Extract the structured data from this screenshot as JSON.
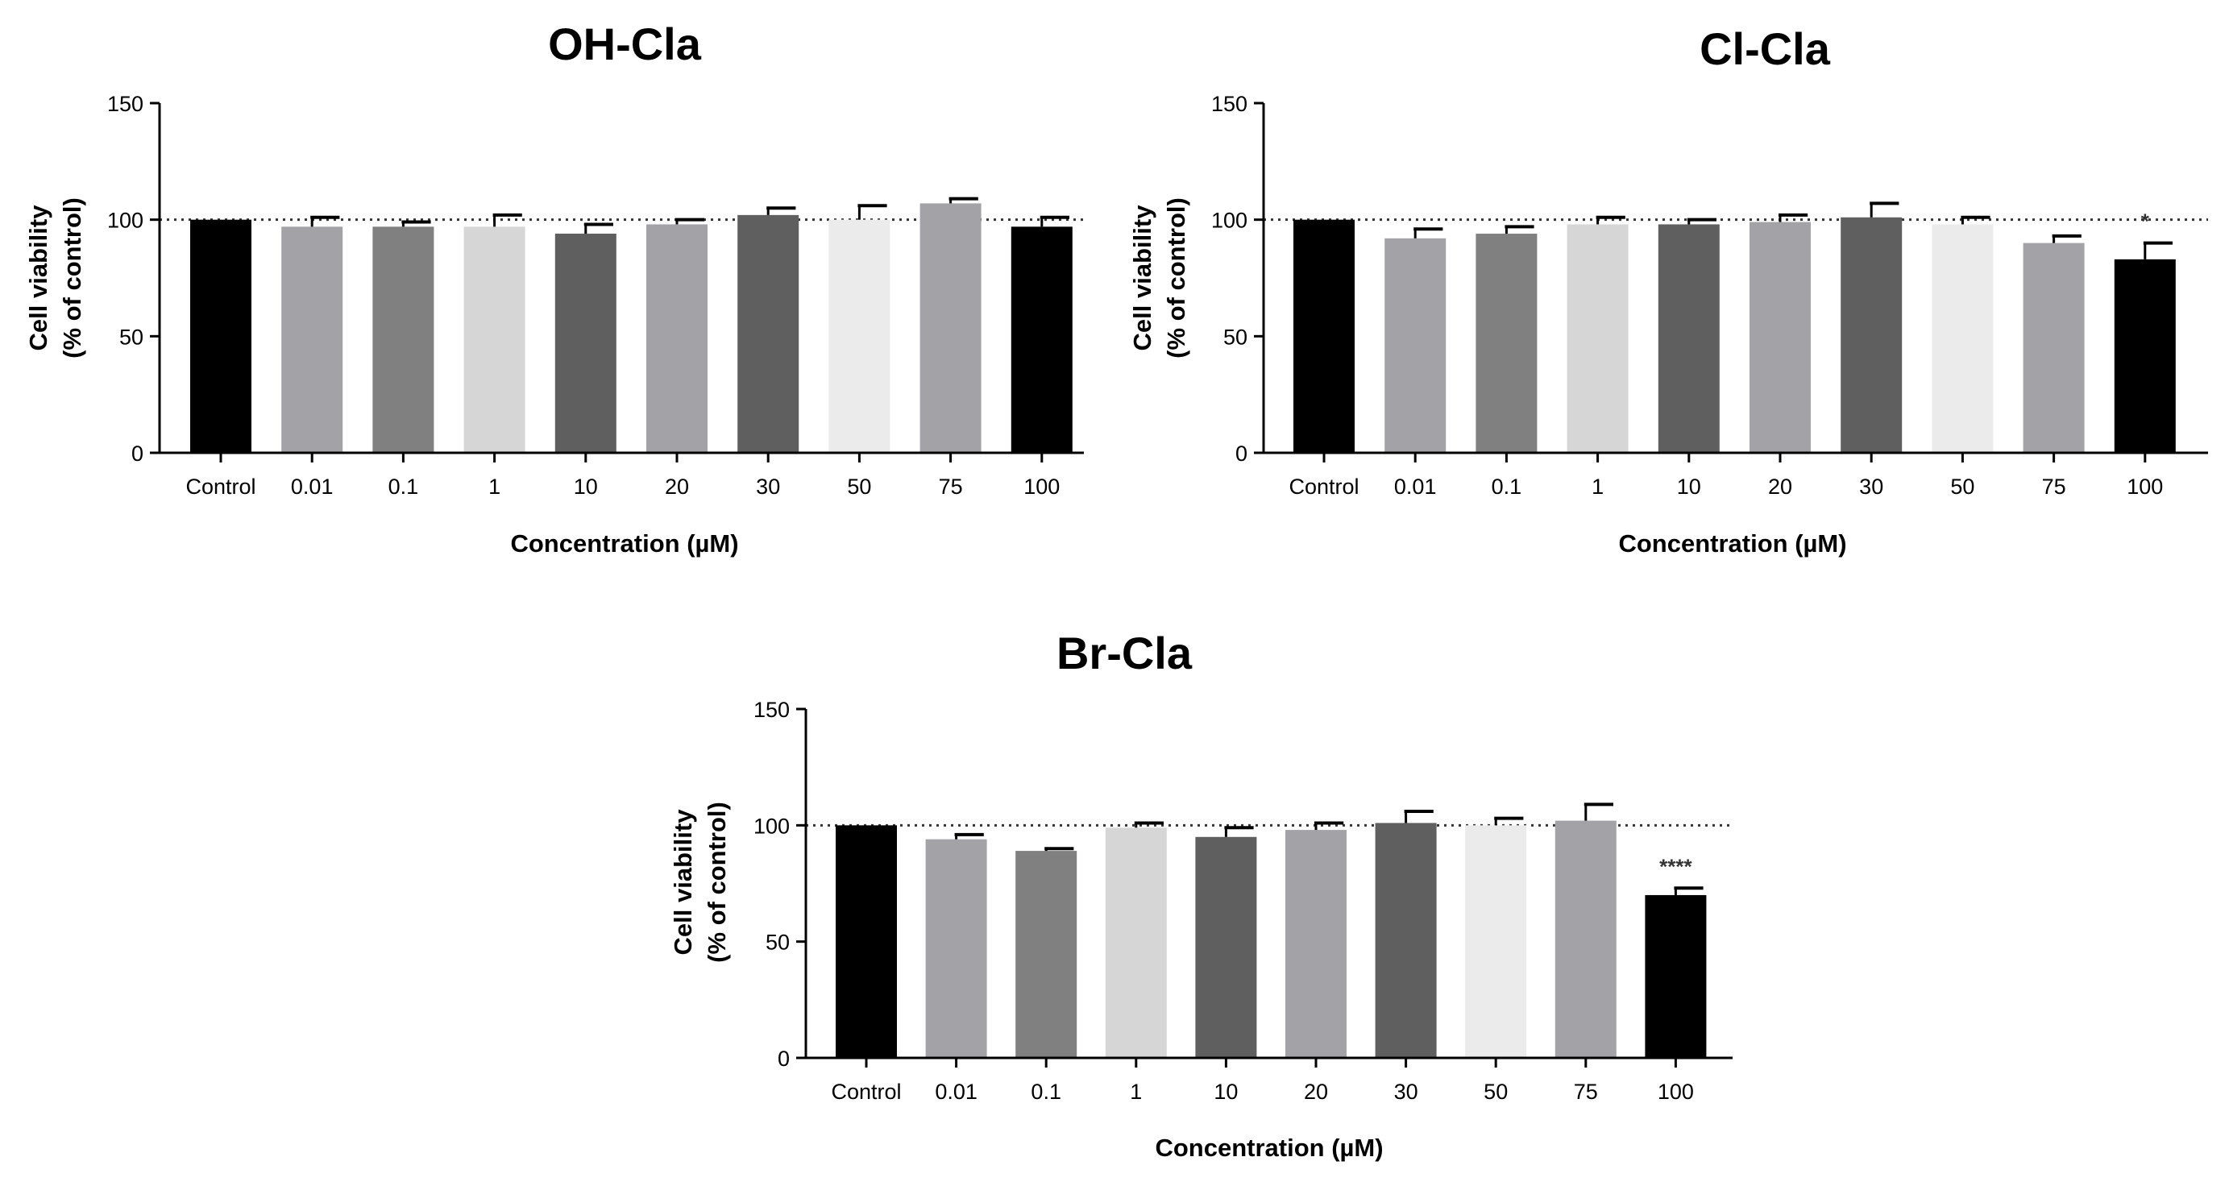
{
  "chart_data": [
    {
      "type": "bar",
      "title": "OH-Cla",
      "xlabel": "Concentration (µM)",
      "ylabel": [
        "Cell viability",
        "(% of control)"
      ],
      "categories": [
        "Control",
        "0.01",
        "0.1",
        "1",
        "10",
        "20",
        "30",
        "50",
        "75",
        "100"
      ],
      "values": [
        100,
        97,
        97,
        97,
        94,
        98,
        102,
        100,
        107,
        97
      ],
      "errors": [
        0,
        4,
        2,
        5,
        4,
        2,
        3,
        6,
        2,
        4
      ],
      "annotations": [
        "",
        "",
        "",
        "",
        "",
        "",
        "",
        "",
        "",
        ""
      ],
      "ylim": [
        0,
        150
      ],
      "yticks": [
        0,
        50,
        100,
        150
      ],
      "reference_line": 100
    },
    {
      "type": "bar",
      "title": "Cl-Cla",
      "xlabel": "Concentration (µM)",
      "ylabel": [
        "Cell viability",
        "(% of control)"
      ],
      "categories": [
        "Control",
        "0.01",
        "0.1",
        "1",
        "10",
        "20",
        "30",
        "50",
        "75",
        "100"
      ],
      "values": [
        100,
        92,
        94,
        98,
        98,
        99,
        101,
        98,
        90,
        83
      ],
      "errors": [
        0,
        4,
        3,
        3,
        2,
        3,
        6,
        3,
        3,
        7
      ],
      "annotations": [
        "",
        "",
        "",
        "",
        "",
        "",
        "",
        "",
        "",
        "*"
      ],
      "ylim": [
        0,
        150
      ],
      "yticks": [
        0,
        50,
        100,
        150
      ],
      "reference_line": 100
    },
    {
      "type": "bar",
      "title": "Br-Cla",
      "xlabel": "Concentration (µM)",
      "ylabel": [
        "Cell viability",
        "(% of control)"
      ],
      "categories": [
        "Control",
        "0.01",
        "0.1",
        "1",
        "10",
        "20",
        "30",
        "50",
        "75",
        "100"
      ],
      "values": [
        100,
        94,
        89,
        99,
        95,
        98,
        101,
        100,
        102,
        70
      ],
      "errors": [
        0,
        2,
        1,
        2,
        4,
        3,
        5,
        3,
        7,
        3
      ],
      "annotations": [
        "",
        "",
        "",
        "",
        "",
        "",
        "",
        "",
        "",
        "****"
      ],
      "ylim": [
        0,
        150
      ],
      "yticks": [
        0,
        50,
        100,
        150
      ],
      "reference_line": 100
    }
  ],
  "colors": {
    "bars": [
      "#000000",
      "#a3a3a7",
      "#808080",
      "#d6d6d6",
      "#5f5f5f",
      "#a3a3a7",
      "#5f5f5f",
      "#ebebeb",
      "#a3a3a7",
      "#000000"
    ],
    "axis": "#000000",
    "error_bar": "#000000",
    "reference_line": "#333333"
  }
}
